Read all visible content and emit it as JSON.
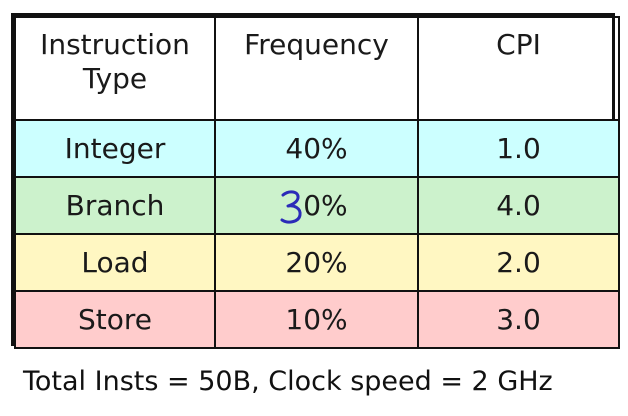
{
  "table": {
    "headers": [
      "Instruction Type",
      "Frequency",
      "CPI"
    ],
    "rows": [
      {
        "type": "Integer",
        "frequency": "40%",
        "cpi": "1.0",
        "color": "#ccffff"
      },
      {
        "type": "Branch",
        "frequency": "30%",
        "cpi": "4.0",
        "color": "#ccf2cc"
      },
      {
        "type": "Load",
        "frequency": "20%",
        "cpi": "2.0",
        "color": "#fff7c2"
      },
      {
        "type": "Store",
        "frequency": "10%",
        "cpi": "3.0",
        "color": "#ffcccc"
      }
    ],
    "annotation": {
      "text": "3",
      "color": "#2b2bb8",
      "note_original_printed_frequency": "30%"
    }
  },
  "footer": {
    "text": "Total Insts = 50B, Clock speed = 2 GHz"
  }
}
